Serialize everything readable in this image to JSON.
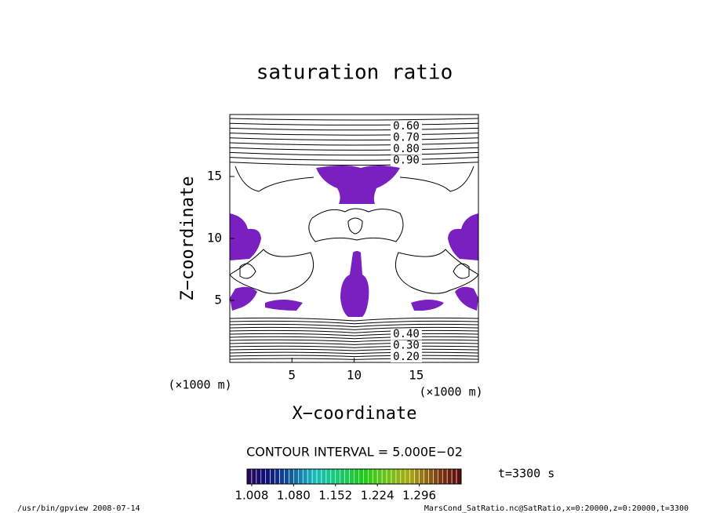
{
  "chart_data": {
    "type": "contour",
    "title": "saturation ratio",
    "x_label": "X−coordinate",
    "y_label": "Z−coordinate",
    "x_unit": "(×1000 m)",
    "y_unit": "(×1000 m)",
    "xlim": [
      0,
      20
    ],
    "ylim": [
      0,
      20
    ],
    "xticks": [
      5,
      10,
      15
    ],
    "yticks": [
      5,
      10,
      15
    ],
    "contour_interval": "CONTOUR INTERVAL = 5.000E−02",
    "contour_labels_top": [
      {
        "value": 0.6,
        "label": "0.60"
      },
      {
        "value": 0.7,
        "label": "0.70"
      },
      {
        "value": 0.8,
        "label": "0.80"
      },
      {
        "value": 0.9,
        "label": "0.90"
      }
    ],
    "contour_labels_bottom": [
      {
        "value": 0.2,
        "label": "0.20"
      },
      {
        "value": 0.3,
        "label": "0.30"
      },
      {
        "value": 0.4,
        "label": "0.40"
      }
    ],
    "fill_color": "#7a1fc0",
    "colorbar": {
      "clim": [
        1.0,
        1.368
      ],
      "ticks": [
        1.008,
        {
          "value": 1.08,
          "label": "1.080"
        },
        1.152,
        1.224,
        1.296
      ]
    },
    "time_label": "t=3300 s",
    "footer_left": "/usr/bin/gpview  2008-07-14",
    "footer_right": "MarsCond_SatRatio.nc@SatRatio,x=0:20000,z=0:20000,t=3300"
  }
}
